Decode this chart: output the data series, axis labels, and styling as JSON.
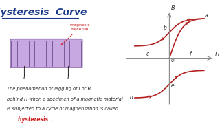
{
  "title": "Hysteresis  Curve",
  "title_color": "#1a3a8a",
  "bg_color": "#ffffff",
  "curve_color": "#b22020",
  "axis_color": "#888888",
  "text_color": "#222222",
  "red_text_color": "#cc2020",
  "solenoid_color": "#c8a8e0",
  "solenoid_line_color": "#7a5a9a",
  "body_text_line1": "The phenomenon of lagging of I or B",
  "body_text_line2": "behind H when a specimen of a magnetic material",
  "body_text_line3": "is subjected to a cycle of magnetisation is called",
  "body_text_hysteresis": "hysteresis .",
  "magnetic_material_label": "magnetic\nmaterial"
}
